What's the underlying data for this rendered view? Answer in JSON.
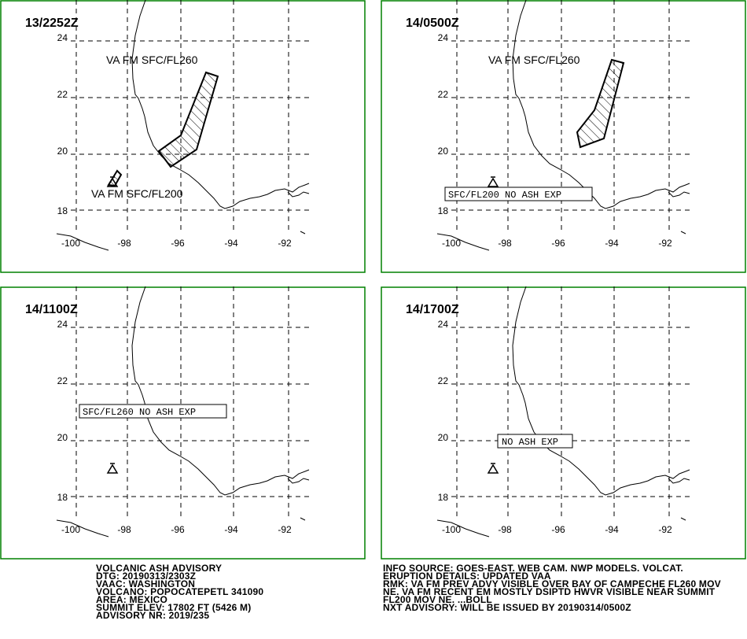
{
  "panels": [
    {
      "title": "13/2252Z",
      "labels": [
        "VA FM SFC/FL260",
        "VA FM SFC/FL200"
      ],
      "box": ""
    },
    {
      "title": "14/0500Z",
      "labels": [
        "VA FM SFC/FL260"
      ],
      "box": "SFC/FL200 NO ASH EXP"
    },
    {
      "title": "14/1100Z",
      "labels": [],
      "box": "SFC/FL260 NO ASH EXP"
    },
    {
      "title": "14/1700Z",
      "labels": [],
      "box": "NO ASH EXP"
    }
  ],
  "axis": {
    "lon_ticks": [
      "-100",
      "-98",
      "-96",
      "-94",
      "-92"
    ],
    "lat_ticks": [
      "24",
      "22",
      "20",
      "18"
    ]
  },
  "advisory_left": [
    "VOLCANIC ASH ADVISORY",
    "DTG: 20190313/2303Z",
    "VAAC: WASHINGTON",
    "VOLCANO: POPOCATEPETL 341090",
    "AREA: MEXICO",
    "SUMMIT ELEV: 17802 FT (5426 M)",
    "ADVISORY NR: 2019/235"
  ],
  "advisory_right": [
    "INFO SOURCE: GOES-EAST. WEB CAM. NWP MODELS. VOLCAT.",
    "ERUPTION DETAILS: UPDATED VAA",
    "RMK: VA FM PREV ADVY VISIBLE OVER BAY OF CAMPECHE FL260 MOV",
    "NE. VA FM RECENT EM MOSTLY DSIPTD HWVR VISIBLE NEAR SUMMIT",
    "FL200 MOV NE. ...BOLL",
    "NXT ADVISORY: WILL BE ISSUED BY 20190314/0500Z"
  ],
  "colors": {
    "frame": "#008000",
    "ink": "#000000",
    "background": "#ffffff"
  }
}
